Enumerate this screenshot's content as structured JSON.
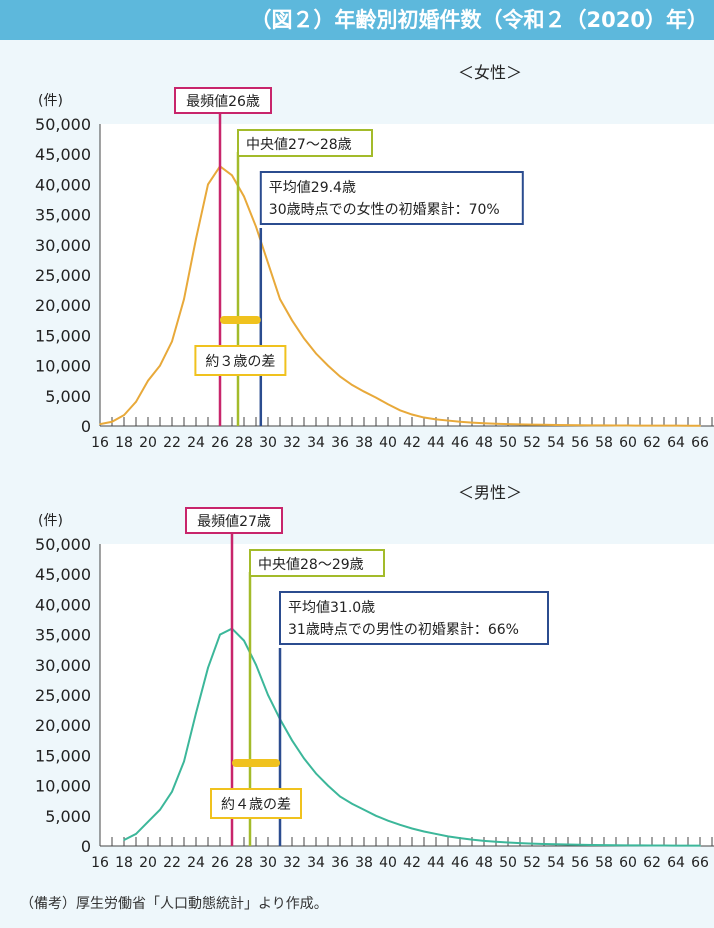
{
  "header": {
    "title": "（図２）年齢別初婚件数（令和２（2020）年）"
  },
  "note": "（備考）厚生労働省「人口動態統計」より作成。",
  "colors": {
    "header_bg": "#5db8dc",
    "mode": "#c8256b",
    "median": "#a3bb2a",
    "mean": "#2b4c8f",
    "diff": "#f0c21e",
    "female_line": "#e8a93a",
    "male_line": "#3cb79a"
  },
  "chart_data": [
    {
      "type": "line",
      "title": "＜女性＞",
      "ylabel": "(件)",
      "ylim": [
        0,
        50000
      ],
      "yticks": [
        "0",
        "5,000",
        "10,000",
        "15,000",
        "20,000",
        "25,000",
        "30,000",
        "35,000",
        "40,000",
        "45,000",
        "50,000"
      ],
      "xticks": [
        "16",
        "18",
        "20",
        "22",
        "24",
        "26",
        "28",
        "30",
        "32",
        "34",
        "36",
        "38",
        "40",
        "42",
        "44",
        "46",
        "48",
        "50",
        "52",
        "54",
        "56",
        "58",
        "60",
        "62",
        "64",
        "66"
      ],
      "x": [
        16,
        17,
        18,
        19,
        20,
        21,
        22,
        23,
        24,
        25,
        26,
        27,
        28,
        29,
        30,
        31,
        32,
        33,
        34,
        35,
        36,
        37,
        38,
        39,
        40,
        41,
        42,
        43,
        44,
        45,
        46,
        47,
        48,
        49,
        50,
        51,
        52,
        53,
        54,
        55,
        56,
        57,
        58,
        59,
        60,
        61,
        62,
        63,
        64,
        65,
        66
      ],
      "values": [
        300,
        700,
        1800,
        4000,
        7500,
        10000,
        14000,
        21000,
        31000,
        40000,
        43000,
        41500,
        38000,
        33000,
        27000,
        21000,
        17500,
        14500,
        12000,
        10000,
        8200,
        6800,
        5700,
        4700,
        3600,
        2600,
        1900,
        1400,
        1100,
        900,
        700,
        560,
        460,
        380,
        320,
        270,
        230,
        200,
        170,
        150,
        130,
        110,
        95,
        85,
        75,
        68,
        62,
        58,
        54,
        50,
        47
      ],
      "markers": {
        "mode": {
          "label": "最頻値26歳",
          "x": 26
        },
        "median": {
          "label": "中央値27～28歳",
          "x": 27.5
        },
        "mean": {
          "label_line1": "平均値29.4歳",
          "label_line2": "30歳時点での女性の初婚累計：70%",
          "x": 29.4
        },
        "diff": {
          "label": "約３歳の差"
        }
      }
    },
    {
      "type": "line",
      "title": "＜男性＞",
      "ylabel": "(件)",
      "ylim": [
        0,
        50000
      ],
      "yticks": [
        "0",
        "5,000",
        "10,000",
        "15,000",
        "20,000",
        "25,000",
        "30,000",
        "35,000",
        "40,000",
        "45,000",
        "50,000"
      ],
      "xticks": [
        "16",
        "18",
        "20",
        "22",
        "24",
        "26",
        "28",
        "30",
        "32",
        "34",
        "36",
        "38",
        "40",
        "42",
        "44",
        "46",
        "48",
        "50",
        "52",
        "54",
        "56",
        "58",
        "60",
        "62",
        "64",
        "66"
      ],
      "x": [
        18,
        19,
        20,
        21,
        22,
        23,
        24,
        25,
        26,
        27,
        28,
        29,
        30,
        31,
        32,
        33,
        34,
        35,
        36,
        37,
        38,
        39,
        40,
        41,
        42,
        43,
        44,
        45,
        46,
        47,
        48,
        49,
        50,
        51,
        52,
        53,
        54,
        55,
        56,
        57,
        58,
        59,
        60,
        61,
        62,
        63,
        64,
        65,
        66
      ],
      "values": [
        1000,
        2000,
        4000,
        6000,
        9000,
        14000,
        22000,
        29500,
        35000,
        36000,
        34000,
        30000,
        25000,
        21000,
        17500,
        14500,
        12000,
        10000,
        8200,
        7000,
        6000,
        5000,
        4200,
        3500,
        2900,
        2400,
        2000,
        1600,
        1300,
        1050,
        850,
        700,
        580,
        480,
        400,
        330,
        280,
        240,
        200,
        170,
        150,
        130,
        110,
        95,
        85,
        75,
        66,
        58,
        52
      ],
      "markers": {
        "mode": {
          "label": "最頻値27歳",
          "x": 27
        },
        "median": {
          "label": "中央値28～29歳",
          "x": 28.5
        },
        "mean": {
          "label_line1": "平均値31.0歳",
          "label_line2": "31歳時点での男性の初婚累計：66%",
          "x": 31
        },
        "diff": {
          "label": "約４歳の差"
        }
      }
    }
  ]
}
